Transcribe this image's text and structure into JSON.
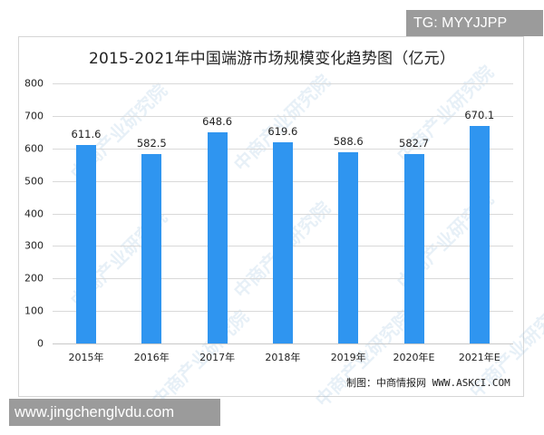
{
  "watermarks": {
    "top_right": "TG: MYYJJPP",
    "bottom_left": "www.jingchenglvdu.com",
    "background_text": "中商产业研究院"
  },
  "source_note": "制图：中商情报网 WWW.ASKCI.COM",
  "colors": {
    "bar": "#2f95f0",
    "grid": "#d9d9d9",
    "frame": "#d6d6d6"
  },
  "chart_data": {
    "type": "bar",
    "title": "2015-2021年中国端游市场规模变化趋势图（亿元）",
    "xlabel": "",
    "ylabel": "",
    "categories": [
      "2015年",
      "2016年",
      "2017年",
      "2018年",
      "2019年",
      "2020年E",
      "2021年E"
    ],
    "values": [
      611.6,
      582.5,
      648.6,
      619.6,
      588.6,
      582.7,
      670.1
    ],
    "value_labels": [
      "611.6",
      "582.5",
      "648.6",
      "619.6",
      "588.6",
      "582.7",
      "670.1"
    ],
    "ylim": [
      0,
      800
    ],
    "yticks": [
      "0",
      "100",
      "200",
      "300",
      "400",
      "500",
      "600",
      "700",
      "800"
    ],
    "grid": true,
    "legend": null
  }
}
